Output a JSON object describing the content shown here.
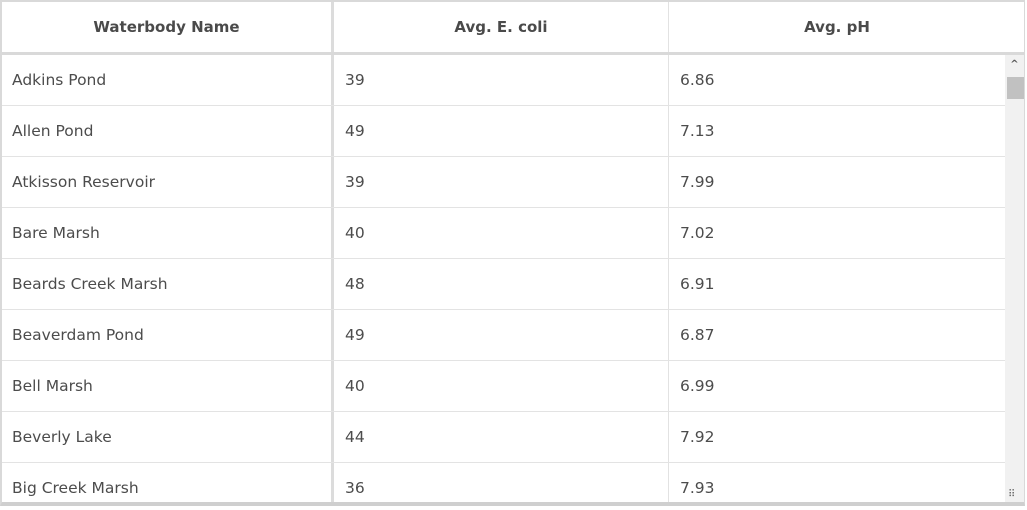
{
  "table": {
    "columns": [
      "Waterbody Name",
      "Avg. E. coli",
      "Avg. pH"
    ],
    "rows": [
      [
        "Adkins Pond",
        "39",
        "6.86"
      ],
      [
        "Allen Pond",
        "49",
        "7.13"
      ],
      [
        "Atkisson Reservoir",
        "39",
        "7.99"
      ],
      [
        "Bare Marsh",
        "40",
        "7.02"
      ],
      [
        "Beards Creek Marsh",
        "48",
        "6.91"
      ],
      [
        "Beaverdam Pond",
        "49",
        "6.87"
      ],
      [
        "Bell Marsh",
        "40",
        "6.99"
      ],
      [
        "Beverly Lake",
        "44",
        "7.92"
      ],
      [
        "Big Creek Marsh",
        "36",
        "7.93"
      ]
    ]
  },
  "scrollbar": {
    "up_icon": "chevron-up-icon",
    "resize_icon": "resize-grip-icon",
    "up_glyph": "^",
    "grip_glyph": "⠿"
  }
}
